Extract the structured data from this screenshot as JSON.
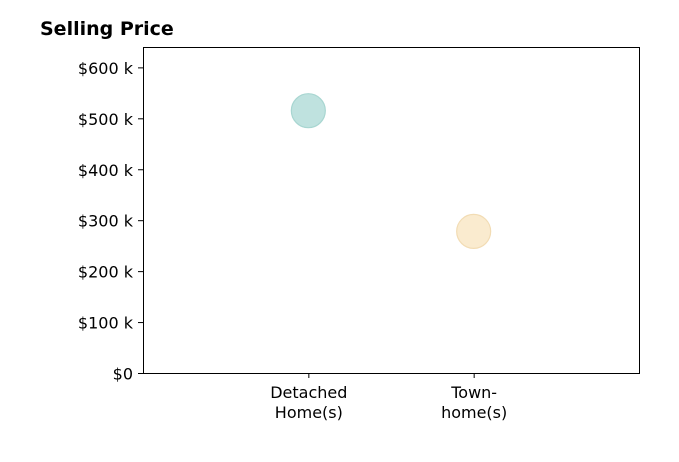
{
  "chart_data": {
    "type": "scatter",
    "title": "Selling Price",
    "xlabel": "",
    "ylabel": "",
    "categories": [
      [
        "Detached",
        "Home(s)"
      ],
      [
        "Town-",
        "home(s)"
      ]
    ],
    "x_ticks": [
      1,
      2
    ],
    "xlim": [
      0,
      3
    ],
    "ylim": [
      0,
      640000
    ],
    "y_ticks": [
      0,
      100000,
      200000,
      300000,
      400000,
      500000,
      600000
    ],
    "y_tick_labels": [
      "$0",
      "$100 k",
      "$200 k",
      "$300 k",
      "$400 k",
      "$500 k",
      "$600 k"
    ],
    "points": [
      {
        "x": 1,
        "y": 515000,
        "color": "#bfe2df",
        "edge": "#a8d6d1"
      },
      {
        "x": 2,
        "y": 278000,
        "color": "#faebcf",
        "edge": "#f2dcb4"
      }
    ],
    "grid": false,
    "legend": "none"
  }
}
